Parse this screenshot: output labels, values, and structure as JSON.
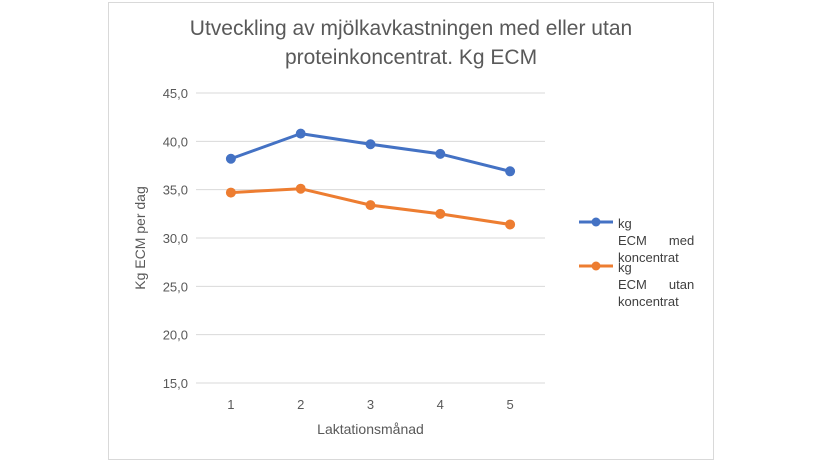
{
  "chart_data": {
    "type": "line",
    "title_lines": [
      "Utveckling av mjölkavkastningen med eller utan",
      "proteinkoncentrat. Kg ECM"
    ],
    "xlabel": "Laktationsmånad",
    "ylabel": "Kg ECM per dag",
    "categories": [
      "1",
      "2",
      "3",
      "4",
      "5"
    ],
    "ylim": [
      15,
      45
    ],
    "yticks": [
      15,
      20,
      25,
      30,
      35,
      40,
      45
    ],
    "ytick_labels": [
      "15,0",
      "20,0",
      "25,0",
      "30,0",
      "35,0",
      "40,0",
      "45,0"
    ],
    "grid": true,
    "legend_position": "right",
    "series": [
      {
        "name": "kg ECM med koncentrat",
        "legend_lines": [
          "kg ECM",
          "med",
          "koncentrat"
        ],
        "color": "#4472c4",
        "values": [
          38.2,
          40.8,
          39.7,
          38.7,
          36.9
        ]
      },
      {
        "name": "kg ECM utan koncentrat",
        "legend_lines": [
          "kg ECM",
          "utan",
          "koncentrat"
        ],
        "color": "#ed7d31",
        "values": [
          34.7,
          35.1,
          33.4,
          32.5,
          31.4
        ]
      }
    ]
  }
}
